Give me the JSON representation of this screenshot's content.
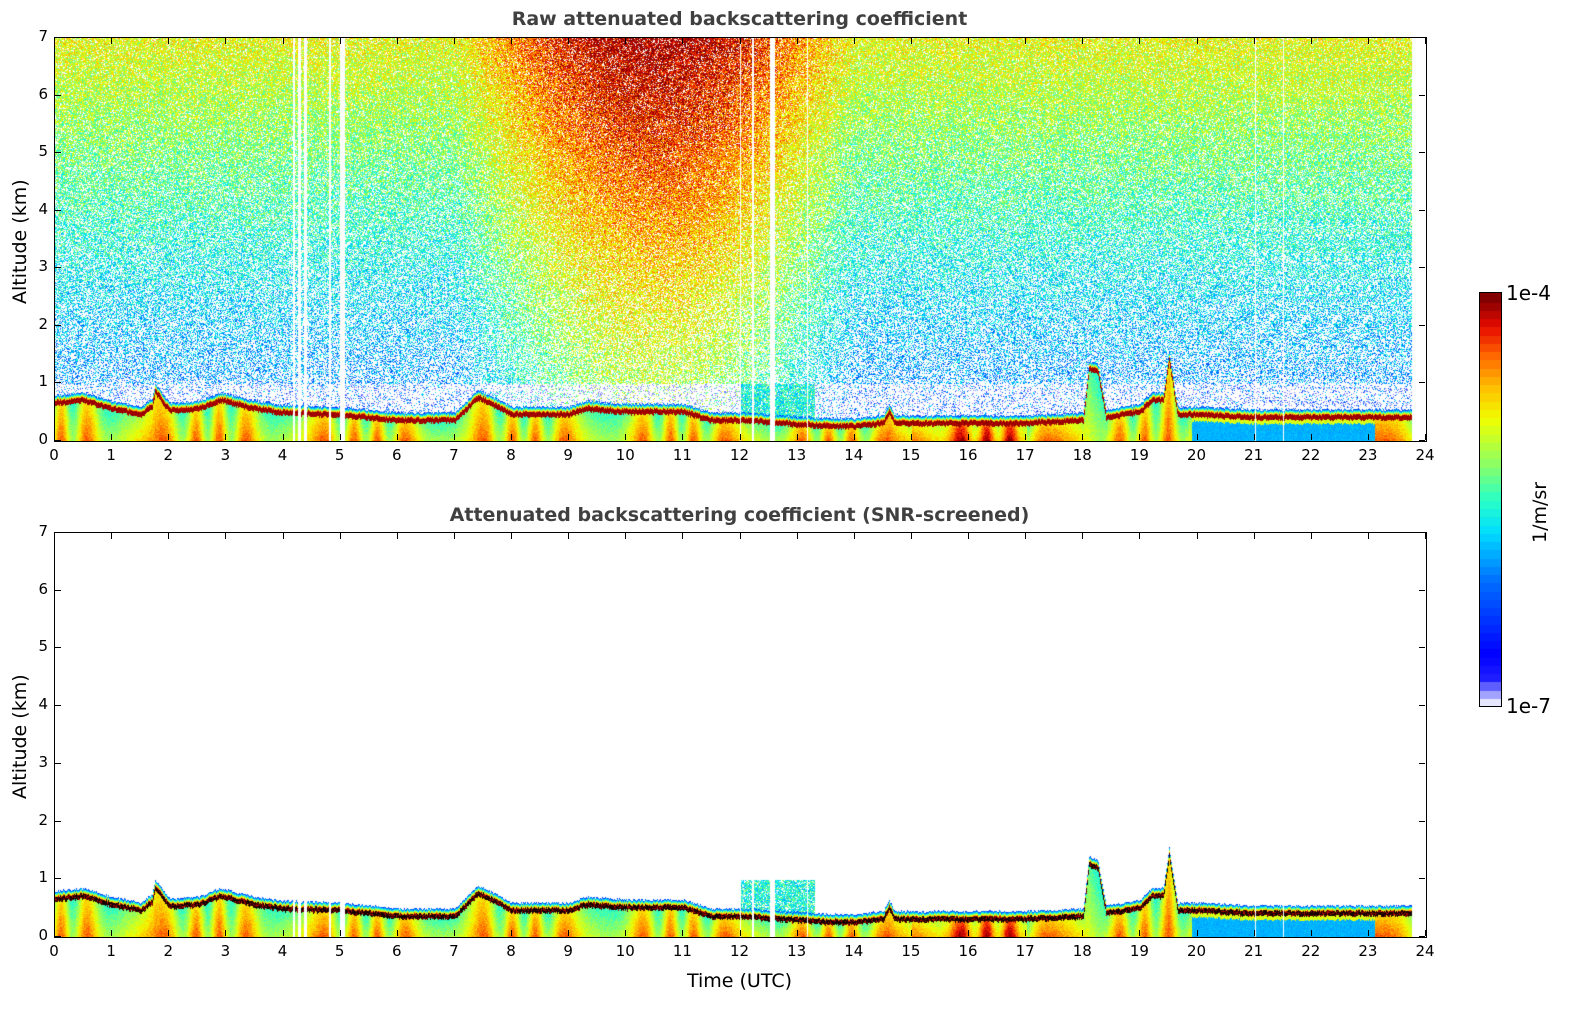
{
  "chart_data": [
    {
      "type": "heatmap",
      "title": "Raw attenuated backscattering coefficient",
      "xlabel": "",
      "ylabel": "Altitude (km)",
      "xlim": [
        0,
        24
      ],
      "ylim": [
        0,
        7
      ],
      "xticks": [
        "0",
        "1",
        "2",
        "3",
        "4",
        "5",
        "6",
        "7",
        "8",
        "9",
        "10",
        "11",
        "12",
        "13",
        "14",
        "15",
        "16",
        "17",
        "18",
        "19",
        "20",
        "21",
        "22",
        "23",
        "24"
      ],
      "yticks": [
        "0",
        "1",
        "2",
        "3",
        "4",
        "5",
        "6",
        "7"
      ],
      "screened": false
    },
    {
      "type": "heatmap",
      "title": "Attenuated backscattering coefficient (SNR-screened)",
      "xlabel": "Time (UTC)",
      "ylabel": "Altitude (km)",
      "xlim": [
        0,
        24
      ],
      "ylim": [
        0,
        7
      ],
      "xticks": [
        "0",
        "1",
        "2",
        "3",
        "4",
        "5",
        "6",
        "7",
        "8",
        "9",
        "10",
        "11",
        "12",
        "13",
        "14",
        "15",
        "16",
        "17",
        "18",
        "19",
        "20",
        "21",
        "22",
        "23",
        "24"
      ],
      "yticks": [
        "0",
        "1",
        "2",
        "3",
        "4",
        "5",
        "6",
        "7"
      ],
      "screened": true
    }
  ],
  "boundary_layer_top_km": {
    "time_utc": [
      0,
      0.5,
      1,
      1.5,
      1.7,
      1.75,
      2,
      2.5,
      2.9,
      3.5,
      4,
      5,
      6,
      7,
      7.4,
      8,
      9,
      9.3,
      10,
      11,
      11.5,
      12,
      13.5,
      14,
      14.5,
      14.6,
      14.7,
      15,
      16,
      17,
      18,
      18.1,
      18.25,
      18.4,
      19,
      19.2,
      19.4,
      19.5,
      19.65,
      20,
      21,
      22,
      23,
      23.75
    ],
    "height": [
      0.75,
      0.8,
      0.65,
      0.55,
      0.7,
      0.95,
      0.62,
      0.65,
      0.8,
      0.65,
      0.58,
      0.55,
      0.45,
      0.45,
      0.85,
      0.55,
      0.55,
      0.65,
      0.6,
      0.6,
      0.45,
      0.45,
      0.35,
      0.35,
      0.4,
      0.6,
      0.4,
      0.4,
      0.4,
      0.4,
      0.45,
      1.35,
      1.3,
      0.5,
      0.6,
      0.8,
      0.8,
      1.5,
      0.55,
      0.55,
      0.5,
      0.5,
      0.5,
      0.5
    ]
  },
  "cloud_segments": [
    {
      "from": 12.0,
      "to": 13.3,
      "top_km": 1.0
    }
  ],
  "data_gaps_utc": [
    [
      4.15,
      4.2
    ],
    [
      4.25,
      4.3
    ],
    [
      4.35,
      4.4
    ],
    [
      4.78,
      4.82
    ],
    [
      4.98,
      5.06
    ],
    [
      11.98,
      12.0
    ],
    [
      12.2,
      12.23
    ],
    [
      12.5,
      12.6
    ],
    [
      13.15,
      13.18
    ],
    [
      21.0,
      21.02
    ],
    [
      21.48,
      21.5
    ]
  ],
  "data_end_utc": 23.75,
  "colorbar": {
    "label": "1/m/sr",
    "max_label": "1e-4",
    "min_label": "1e-7",
    "scale": "log",
    "range": [
      1e-07,
      0.0001
    ]
  }
}
